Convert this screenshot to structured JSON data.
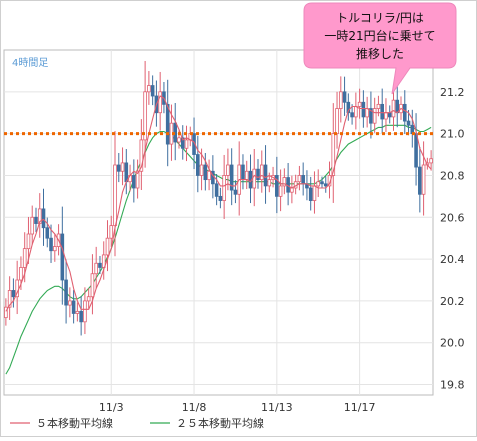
{
  "chart_data": {
    "type": "candlestick",
    "title": "",
    "timeframe_label": "4時間足",
    "xlabel": "",
    "ylabel": "",
    "ylim": [
      19.75,
      21.4
    ],
    "grid": true,
    "y_ticks": [
      19.8,
      20.0,
      20.2,
      20.4,
      20.6,
      20.8,
      21.0,
      21.2
    ],
    "y_tick_labels": [
      "19.8",
      "20.0",
      "20.2",
      "20.4",
      "20.6",
      "20.8",
      "21.0",
      "21.2"
    ],
    "x_tick_labels": [
      "11/3",
      "11/8",
      "11/13",
      "11/17"
    ],
    "x_tick_index": [
      28,
      50,
      72,
      94
    ],
    "n_bars": 114,
    "reference_line": {
      "value": 21.0,
      "color": "#ee6600"
    },
    "annotation": {
      "lines": [
        "トルコリラ/円は",
        "一時21円台に乗せて",
        "推移した"
      ],
      "background": "#ff99cc"
    },
    "legend": [
      {
        "name": "５本移動平均線",
        "color": "#e06070"
      },
      {
        "name": "２５本移動平均線",
        "color": "#33aa55"
      }
    ],
    "colors": {
      "up": "#ffffff",
      "up_border": "#e06070",
      "down": "#3f6f9f"
    },
    "close": [
      20.17,
      20.25,
      20.22,
      20.3,
      20.36,
      20.45,
      20.52,
      20.6,
      20.57,
      20.64,
      20.55,
      20.5,
      20.44,
      20.46,
      20.52,
      20.3,
      20.18,
      20.2,
      20.14,
      20.15,
      20.1,
      20.2,
      20.22,
      20.33,
      20.38,
      20.36,
      20.42,
      20.5,
      20.56,
      20.85,
      20.82,
      20.86,
      20.77,
      20.8,
      20.74,
      20.82,
      20.97,
      21.2,
      21.23,
      21.18,
      21.1,
      21.2,
      21.14,
      20.95,
      21.05,
      20.96,
      20.98,
      20.93,
      20.97,
      21.0,
      20.9,
      20.8,
      20.85,
      20.78,
      20.82,
      20.76,
      20.7,
      20.68,
      20.8,
      20.85,
      20.73,
      20.71,
      20.85,
      20.78,
      20.82,
      20.74,
      20.83,
      20.78,
      20.85,
      20.75,
      20.78,
      20.8,
      20.7,
      20.75,
      20.79,
      20.72,
      20.74,
      20.77,
      20.8,
      20.76,
      20.74,
      20.68,
      20.75,
      20.77,
      20.76,
      20.75,
      20.8,
      21.0,
      21.12,
      21.2,
      21.15,
      21.1,
      21.08,
      21.13,
      21.15,
      21.08,
      21.12,
      21.05,
      21.12,
      21.14,
      21.07,
      21.1,
      21.08,
      21.16,
      21.1,
      21.14,
      21.06,
      21.04,
      21.0,
      20.84,
      20.71,
      20.85,
      20.86,
      20.88
    ],
    "ma5": [
      20.15,
      20.18,
      20.2,
      20.24,
      20.28,
      20.33,
      20.4,
      20.47,
      20.52,
      20.58,
      20.59,
      20.57,
      20.54,
      20.52,
      20.49,
      20.45,
      20.39,
      20.34,
      20.26,
      20.2,
      20.16,
      20.16,
      20.16,
      20.2,
      20.26,
      20.3,
      20.35,
      20.4,
      20.45,
      20.55,
      20.63,
      20.72,
      20.77,
      20.8,
      20.82,
      20.81,
      20.84,
      20.92,
      21.0,
      21.07,
      21.14,
      21.18,
      21.17,
      21.13,
      21.09,
      21.06,
      21.02,
      20.97,
      20.98,
      20.97,
      20.96,
      20.92,
      20.9,
      20.87,
      20.83,
      20.8,
      20.78,
      20.75,
      20.75,
      20.76,
      20.75,
      20.75,
      20.78,
      20.78,
      20.78,
      20.77,
      20.8,
      20.79,
      20.8,
      20.79,
      20.8,
      20.79,
      20.78,
      20.76,
      20.76,
      20.75,
      20.74,
      20.75,
      20.76,
      20.76,
      20.76,
      20.75,
      20.75,
      20.74,
      20.74,
      20.74,
      20.76,
      20.82,
      20.89,
      20.97,
      21.05,
      21.11,
      21.13,
      21.13,
      21.12,
      21.12,
      21.12,
      21.11,
      21.1,
      21.1,
      21.1,
      21.1,
      21.1,
      21.11,
      21.1,
      21.12,
      21.11,
      21.1,
      21.07,
      21.01,
      20.93,
      20.89,
      20.85,
      20.83
    ],
    "ma25": [
      19.85,
      19.88,
      19.93,
      19.98,
      20.03,
      20.07,
      20.11,
      20.15,
      20.18,
      20.21,
      20.23,
      20.25,
      20.26,
      20.27,
      20.27,
      20.26,
      20.24,
      20.22,
      20.21,
      20.21,
      20.22,
      20.24,
      20.26,
      20.28,
      20.31,
      20.34,
      20.37,
      20.41,
      20.45,
      20.5,
      20.56,
      20.62,
      20.68,
      20.73,
      20.78,
      20.83,
      20.87,
      20.91,
      20.95,
      20.98,
      21.0,
      21.01,
      21.01,
      21.0,
      20.99,
      20.97,
      20.95,
      20.93,
      20.91,
      20.89,
      20.87,
      20.85,
      20.84,
      20.83,
      20.82,
      20.81,
      20.8,
      20.79,
      20.78,
      20.78,
      20.77,
      20.77,
      20.77,
      20.77,
      20.77,
      20.77,
      20.77,
      20.77,
      20.77,
      20.77,
      20.77,
      20.76,
      20.76,
      20.76,
      20.76,
      20.76,
      20.76,
      20.76,
      20.76,
      20.76,
      20.76,
      20.76,
      20.76,
      20.77,
      20.78,
      20.8,
      20.82,
      20.85,
      20.88,
      20.91,
      20.93,
      20.95,
      20.96,
      20.97,
      20.98,
      20.99,
      21.0,
      21.01,
      21.02,
      21.03,
      21.03,
      21.04,
      21.04,
      21.04,
      21.04,
      21.04,
      21.04,
      21.03,
      21.03,
      21.02,
      21.01,
      21.01,
      21.02,
      21.03
    ]
  }
}
